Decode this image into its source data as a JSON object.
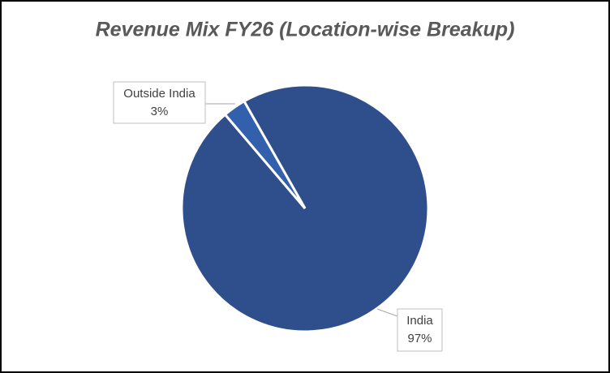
{
  "chart_data": {
    "type": "pie",
    "title": "Revenue Mix FY26 (Location-wise Breakup)",
    "categories": [
      "India",
      "Outside India"
    ],
    "values": [
      97,
      3
    ],
    "value_labels": [
      "97%",
      "3%"
    ],
    "colors": [
      "#2f4f8c",
      "#3360ac"
    ]
  }
}
